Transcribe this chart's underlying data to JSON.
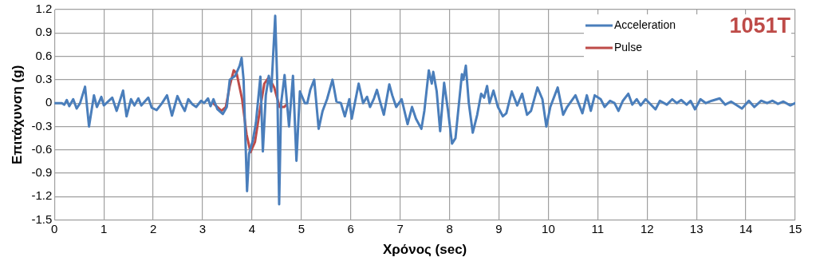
{
  "chart_data": {
    "type": "line",
    "xlabel": "Χρόνος (sec)",
    "ylabel": "Επιτάχυνση (g)",
    "annotations": [
      "1051T"
    ],
    "xlim": [
      0,
      15
    ],
    "xticks": [
      0,
      1,
      2,
      3,
      4,
      5,
      6,
      7,
      8,
      9,
      10,
      11,
      12,
      13,
      14,
      15
    ],
    "ylim": [
      -1.5,
      1.2
    ],
    "yticks": [
      -1.5,
      -1.2,
      -0.9,
      -0.6,
      -0.3,
      0,
      0.3,
      0.6,
      0.9,
      1.2
    ],
    "grid": true,
    "legend": "top right",
    "marker": "none",
    "line_style": "solid",
    "series": [
      {
        "name": "Acceleration",
        "color": "#4a7ebb",
        "x": [
          0,
          0.15,
          0.2,
          0.25,
          0.3,
          0.38,
          0.45,
          0.52,
          0.62,
          0.7,
          0.8,
          0.86,
          0.95,
          1.0,
          1.17,
          1.26,
          1.39,
          1.46,
          1.55,
          1.62,
          1.7,
          1.76,
          1.9,
          1.97,
          2.07,
          2.18,
          2.28,
          2.38,
          2.49,
          2.57,
          2.64,
          2.71,
          2.8,
          2.87,
          2.97,
          3.03,
          3.11,
          3.16,
          3.22,
          3.3,
          3.41,
          3.49,
          3.55,
          3.66,
          3.75,
          3.79,
          3.83,
          3.9,
          3.94,
          4.02,
          4.08,
          4.17,
          4.22,
          4.28,
          4.34,
          4.39,
          4.47,
          4.51,
          4.55,
          4.59,
          4.66,
          4.75,
          4.83,
          4.9,
          4.97,
          5.07,
          5.12,
          5.18,
          5.26,
          5.35,
          5.43,
          5.52,
          5.63,
          5.71,
          5.8,
          5.88,
          5.97,
          6.02,
          6.16,
          6.25,
          6.33,
          6.39,
          6.47,
          6.53,
          6.58,
          6.67,
          6.78,
          6.84,
          6.92,
          7.03,
          7.15,
          7.24,
          7.32,
          7.43,
          7.49,
          7.58,
          7.64,
          7.67,
          7.74,
          7.81,
          7.89,
          7.97,
          8.05,
          8.12,
          8.25,
          8.28,
          8.33,
          8.39,
          8.47,
          8.56,
          8.64,
          8.7,
          8.76,
          8.81,
          8.89,
          8.98,
          9.08,
          9.15,
          9.26,
          9.37,
          9.47,
          9.57,
          9.65,
          9.78,
          9.88,
          9.96,
          10.04,
          10.19,
          10.3,
          10.38,
          10.55,
          10.69,
          10.78,
          10.86,
          10.94,
          11.06,
          11.14,
          11.25,
          11.34,
          11.42,
          11.51,
          11.62,
          11.7,
          11.79,
          11.87,
          11.97,
          12.17,
          12.26,
          12.4,
          12.51,
          12.6,
          12.69,
          12.8,
          12.88,
          12.97,
          13.08,
          13.19,
          13.31,
          13.47,
          13.58,
          13.7,
          13.92,
          14.06,
          14.17,
          14.31,
          14.43,
          14.54,
          14.65,
          14.76,
          14.9,
          15
        ],
        "values": [
          0,
          0,
          -0.02,
          0.04,
          -0.04,
          0.05,
          -0.07,
          0,
          0.21,
          -0.3,
          0.1,
          -0.05,
          0.08,
          -0.03,
          0.07,
          -0.1,
          0.16,
          -0.17,
          0.05,
          -0.03,
          0.06,
          -0.03,
          0.07,
          -0.06,
          -0.09,
          0,
          0.1,
          -0.16,
          0.09,
          -0.02,
          -0.1,
          0.05,
          -0.02,
          -0.05,
          0.03,
          0,
          0.06,
          -0.04,
          0.05,
          -0.08,
          -0.14,
          -0.05,
          0.3,
          0.35,
          0.48,
          0.58,
          0.3,
          -1.13,
          -0.65,
          -0.47,
          -0.25,
          0.34,
          -0.62,
          0.1,
          0.35,
          0.15,
          1.12,
          0.3,
          -1.3,
          0,
          0.36,
          -0.3,
          0.35,
          -0.74,
          0.15,
          0,
          0,
          0.17,
          0.3,
          -0.33,
          -0.1,
          0.05,
          0.3,
          0.02,
          0,
          -0.17,
          0.05,
          -0.2,
          0.25,
          0,
          0.08,
          -0.05,
          0.06,
          0.17,
          0.05,
          -0.15,
          0.24,
          0.1,
          -0.05,
          0.05,
          -0.27,
          -0.05,
          -0.2,
          -0.33,
          -0.1,
          0.42,
          0.25,
          0.4,
          0.15,
          -0.36,
          0.26,
          -0.1,
          -0.52,
          -0.45,
          0.37,
          0.3,
          0.48,
          0,
          -0.38,
          -0.15,
          0.12,
          0.07,
          0.22,
          0,
          0.16,
          -0.05,
          -0.17,
          -0.13,
          0.15,
          -0.03,
          0.12,
          -0.15,
          -0.1,
          0.2,
          0.05,
          -0.3,
          -0.05,
          0.2,
          -0.15,
          -0.05,
          0.1,
          -0.13,
          0.1,
          -0.1,
          0.1,
          0.05,
          -0.05,
          0.03,
          0,
          -0.1,
          0.03,
          0.12,
          -0.02,
          0.05,
          -0.03,
          0.05,
          -0.08,
          0.03,
          -0.02,
          0.05,
          0,
          0.04,
          -0.02,
          0.03,
          -0.08,
          0.05,
          0,
          0.03,
          0.06,
          -0.02,
          0.02,
          -0.07,
          0.03,
          -0.05,
          0.03,
          0,
          0.03,
          -0.01,
          0.02,
          -0.03,
          0
        ]
      },
      {
        "name": "Pulse",
        "color": "#be4b48",
        "x": [
          3.21,
          3.3,
          3.38,
          3.47,
          3.55,
          3.63,
          3.69,
          3.8,
          3.89,
          3.97,
          4.06,
          4.17,
          4.25,
          4.34,
          4.45,
          4.56,
          4.65,
          4.7
        ],
        "values": [
          0,
          -0.05,
          -0.1,
          -0.05,
          0.22,
          0.42,
          0.38,
          0.05,
          -0.4,
          -0.63,
          -0.5,
          -0.05,
          0.25,
          0.33,
          0.2,
          -0.05,
          -0.05,
          -0.02
        ]
      }
    ]
  }
}
